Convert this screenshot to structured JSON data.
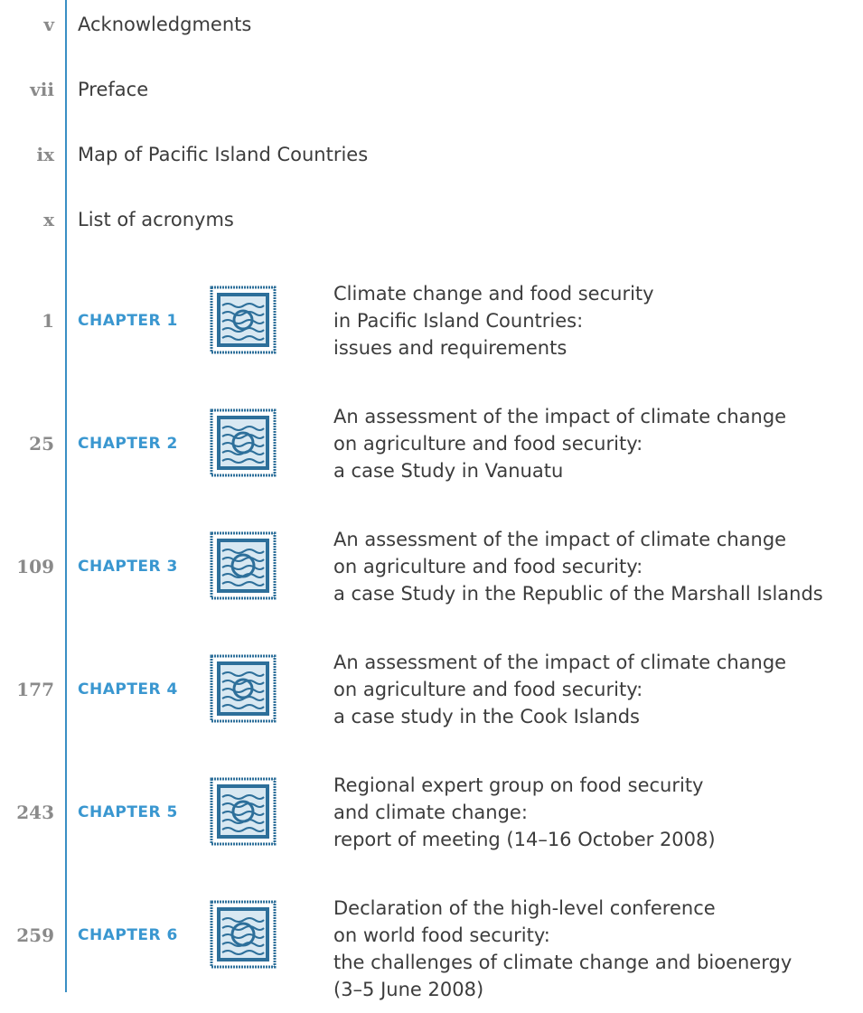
{
  "front_matter": [
    {
      "page": "v",
      "title": "Acknowledgments"
    },
    {
      "page": "vii",
      "title": "Preface"
    },
    {
      "page": "ix",
      "title": "Map of Pacific Island Countries"
    },
    {
      "page": "x",
      "title": "List of acronyms"
    }
  ],
  "chapters": [
    {
      "page": "1",
      "label": "CHAPTER 1",
      "title": [
        "Climate change and food security",
        "in Pacific Island Countries:",
        "issues and requirements"
      ]
    },
    {
      "page": "25",
      "label": "CHAPTER 2",
      "title": [
        "An assessment of the impact of climate change",
        "on agriculture and food security:",
        "a case Study in Vanuatu"
      ]
    },
    {
      "page": "109",
      "label": "CHAPTER 3",
      "title": [
        "An assessment of the impact of climate change",
        "on agriculture and food security:",
        "a case Study in the Republic of the Marshall Islands"
      ]
    },
    {
      "page": "177",
      "label": "CHAPTER 4",
      "title": [
        "An assessment of the impact of climate change",
        "on agriculture and food security:",
        "a case study in the Cook Islands"
      ]
    },
    {
      "page": "243",
      "label": "CHAPTER 5",
      "title": [
        "Regional expert group on food security",
        "and climate change:",
        "report of meeting (14–16 October 2008)"
      ]
    },
    {
      "page": "259",
      "label": "CHAPTER 6",
      "title": [
        "Declaration of the high-level conference",
        "on world food security:",
        "the challenges of climate change and bioenergy",
        "(3–5 June 2008)"
      ]
    }
  ]
}
